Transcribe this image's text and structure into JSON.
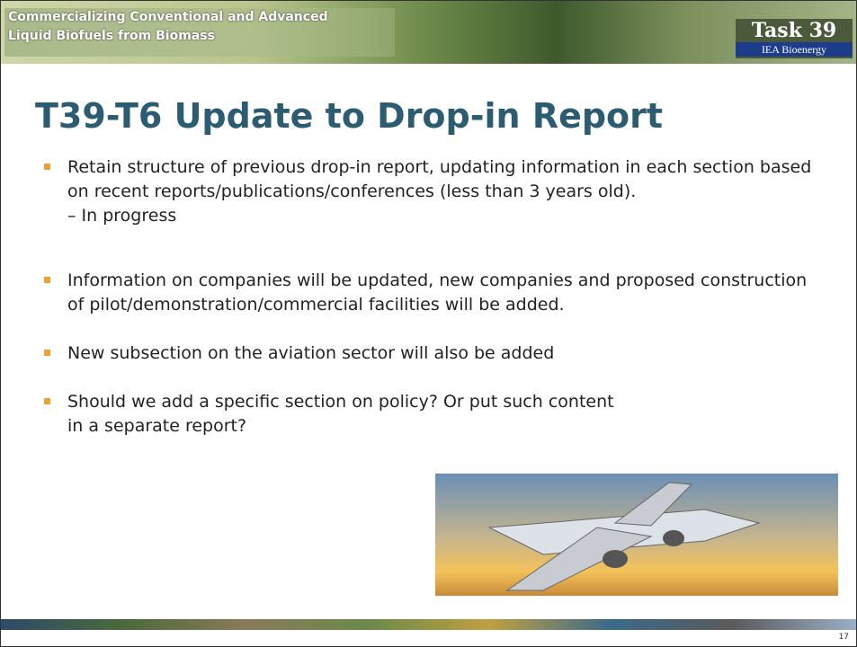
{
  "header": {
    "banner": [
      "Commercializing Conventional and Advanced",
      "Liquid Biofuels from Biomass"
    ],
    "logo_main": "Task 39",
    "logo_sub": "IEA Bioenergy"
  },
  "title": "T39-T6 Update to Drop-in Report",
  "bullets": [
    {
      "text": "Retain structure of previous drop-in report, updating information in each section based on recent reports/publications/conferences (less than 3 years old).",
      "sub": "– In progress"
    },
    {
      "text": "Information on companies will be updated, new companies and proposed construction of pilot/demonstration/commercial facilities will be added."
    },
    {
      "text": "New subsection on the aviation sector will also be added"
    },
    {
      "text": "Should we add a specific section on policy? Or put such content in a separate report?"
    }
  ],
  "page_number": "17"
}
